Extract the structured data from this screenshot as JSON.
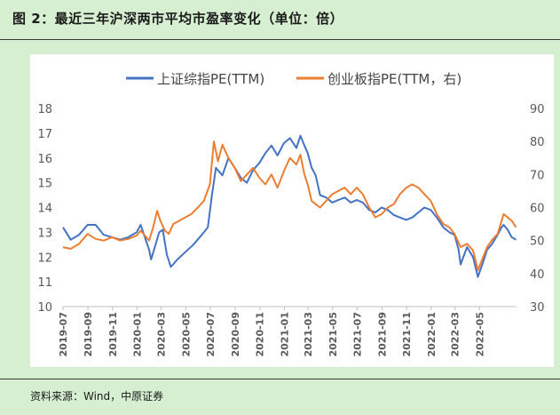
{
  "figure": {
    "title": "图 2：最近三年沪深两市平均市盈率变化（单位：倍）",
    "source": "资料来源：Wind，中原证券"
  },
  "chart_data": {
    "type": "line",
    "legend_position": "top",
    "grid": false,
    "x": [
      "2019-07",
      "2019-09",
      "2019-11",
      "2020-01",
      "2020-03",
      "2020-05",
      "2020-07",
      "2020-09",
      "2020-11",
      "2021-01",
      "2021-03",
      "2021-05",
      "2021-07",
      "2021-09",
      "2021-11",
      "2022-01",
      "2022-03",
      "2022-05"
    ],
    "yleft": {
      "lim": [
        10,
        18
      ],
      "ticks": [
        10,
        11,
        12,
        13,
        14,
        15,
        16,
        17,
        18
      ]
    },
    "yright": {
      "lim": [
        30,
        90
      ],
      "ticks": [
        30,
        40,
        50,
        60,
        70,
        80,
        90
      ]
    },
    "series": [
      {
        "name": "上证综指PE(TTM)",
        "axis": "left",
        "color": "#4472c4",
        "points": [
          [
            "2019-07-01",
            13.2
          ],
          [
            "2019-07-20",
            12.7
          ],
          [
            "2019-08-10",
            12.9
          ],
          [
            "2019-08-31",
            13.3
          ],
          [
            "2019-09-20",
            13.3
          ],
          [
            "2019-10-10",
            12.9
          ],
          [
            "2019-10-31",
            12.8
          ],
          [
            "2019-11-20",
            12.7
          ],
          [
            "2019-12-10",
            12.8
          ],
          [
            "2019-12-31",
            13.0
          ],
          [
            "2020-01-10",
            13.3
          ],
          [
            "2020-01-31",
            12.3
          ],
          [
            "2020-02-05",
            11.9
          ],
          [
            "2020-02-25",
            13.0
          ],
          [
            "2020-03-05",
            13.1
          ],
          [
            "2020-03-15",
            12.1
          ],
          [
            "2020-03-25",
            11.6
          ],
          [
            "2020-04-10",
            11.9
          ],
          [
            "2020-04-30",
            12.2
          ],
          [
            "2020-05-20",
            12.5
          ],
          [
            "2020-06-10",
            12.9
          ],
          [
            "2020-06-25",
            13.2
          ],
          [
            "2020-07-05",
            14.5
          ],
          [
            "2020-07-15",
            15.6
          ],
          [
            "2020-07-31",
            15.3
          ],
          [
            "2020-08-15",
            16.0
          ],
          [
            "2020-08-31",
            15.6
          ],
          [
            "2020-09-15",
            15.2
          ],
          [
            "2020-09-30",
            15.0
          ],
          [
            "2020-10-15",
            15.5
          ],
          [
            "2020-10-31",
            15.8
          ],
          [
            "2020-11-15",
            16.2
          ],
          [
            "2020-11-30",
            16.5
          ],
          [
            "2020-12-15",
            16.1
          ],
          [
            "2020-12-31",
            16.6
          ],
          [
            "2021-01-15",
            16.8
          ],
          [
            "2021-01-31",
            16.4
          ],
          [
            "2021-02-10",
            16.9
          ],
          [
            "2021-02-20",
            16.5
          ],
          [
            "2021-02-28",
            16.2
          ],
          [
            "2021-03-10",
            15.6
          ],
          [
            "2021-03-20",
            15.3
          ],
          [
            "2021-03-31",
            14.5
          ],
          [
            "2021-04-15",
            14.4
          ],
          [
            "2021-04-30",
            14.2
          ],
          [
            "2021-05-15",
            14.3
          ],
          [
            "2021-05-31",
            14.4
          ],
          [
            "2021-06-15",
            14.2
          ],
          [
            "2021-06-30",
            14.3
          ],
          [
            "2021-07-15",
            14.2
          ],
          [
            "2021-07-31",
            13.9
          ],
          [
            "2021-08-15",
            13.8
          ],
          [
            "2021-08-31",
            14.0
          ],
          [
            "2021-09-15",
            13.9
          ],
          [
            "2021-09-30",
            13.7
          ],
          [
            "2021-10-15",
            13.6
          ],
          [
            "2021-10-31",
            13.5
          ],
          [
            "2021-11-15",
            13.6
          ],
          [
            "2021-11-30",
            13.8
          ],
          [
            "2021-12-15",
            14.0
          ],
          [
            "2021-12-31",
            13.9
          ],
          [
            "2022-01-15",
            13.6
          ],
          [
            "2022-01-31",
            13.2
          ],
          [
            "2022-02-15",
            13.0
          ],
          [
            "2022-02-28",
            12.9
          ],
          [
            "2022-03-10",
            12.3
          ],
          [
            "2022-03-15",
            11.7
          ],
          [
            "2022-03-31",
            12.4
          ],
          [
            "2022-04-15",
            12.0
          ],
          [
            "2022-04-27",
            11.2
          ],
          [
            "2022-05-10",
            11.8
          ],
          [
            "2022-05-20",
            12.3
          ],
          [
            "2022-05-31",
            12.5
          ],
          [
            "2022-06-15",
            12.9
          ],
          [
            "2022-06-25",
            13.2
          ],
          [
            "2022-06-30",
            13.3
          ],
          [
            "2022-07-10",
            13.1
          ],
          [
            "2022-07-20",
            12.8
          ],
          [
            "2022-07-31",
            12.7
          ]
        ]
      },
      {
        "name": "创业板指PE(TTM，右)",
        "axis": "right",
        "color": "#ed7d31",
        "points": [
          [
            "2019-07-01",
            48.0
          ],
          [
            "2019-07-20",
            47.5
          ],
          [
            "2019-08-10",
            49.0
          ],
          [
            "2019-08-31",
            52.0
          ],
          [
            "2019-09-20",
            50.5
          ],
          [
            "2019-10-10",
            50.0
          ],
          [
            "2019-10-31",
            51.0
          ],
          [
            "2019-11-20",
            50.0
          ],
          [
            "2019-12-10",
            50.5
          ],
          [
            "2019-12-31",
            51.5
          ],
          [
            "2020-01-10",
            53.0
          ],
          [
            "2020-01-31",
            50.0
          ],
          [
            "2020-02-10",
            54.0
          ],
          [
            "2020-02-20",
            59.0
          ],
          [
            "2020-02-28",
            56.0
          ],
          [
            "2020-03-10",
            53.0
          ],
          [
            "2020-03-20",
            52.0
          ],
          [
            "2020-03-31",
            55.0
          ],
          [
            "2020-04-15",
            56.0
          ],
          [
            "2020-04-30",
            57.0
          ],
          [
            "2020-05-15",
            58.0
          ],
          [
            "2020-05-31",
            60.0
          ],
          [
            "2020-06-15",
            62.0
          ],
          [
            "2020-06-30",
            67.0
          ],
          [
            "2020-07-10",
            80.0
          ],
          [
            "2020-07-20",
            74.0
          ],
          [
            "2020-07-31",
            79.0
          ],
          [
            "2020-08-15",
            75.0
          ],
          [
            "2020-08-31",
            72.0
          ],
          [
            "2020-09-15",
            68.0
          ],
          [
            "2020-09-30",
            70.0
          ],
          [
            "2020-10-15",
            72.0
          ],
          [
            "2020-10-31",
            69.0
          ],
          [
            "2020-11-15",
            67.0
          ],
          [
            "2020-11-30",
            70.0
          ],
          [
            "2020-12-15",
            66.0
          ],
          [
            "2020-12-31",
            71.0
          ],
          [
            "2021-01-15",
            75.0
          ],
          [
            "2021-01-31",
            73.0
          ],
          [
            "2021-02-10",
            76.0
          ],
          [
            "2021-02-20",
            70.0
          ],
          [
            "2021-02-28",
            67.0
          ],
          [
            "2021-03-10",
            62.0
          ],
          [
            "2021-03-20",
            61.0
          ],
          [
            "2021-03-31",
            60.0
          ],
          [
            "2021-04-15",
            62.0
          ],
          [
            "2021-04-30",
            64.0
          ],
          [
            "2021-05-15",
            65.0
          ],
          [
            "2021-05-31",
            66.0
          ],
          [
            "2021-06-15",
            64.0
          ],
          [
            "2021-06-30",
            66.0
          ],
          [
            "2021-07-15",
            64.0
          ],
          [
            "2021-07-31",
            60.0
          ],
          [
            "2021-08-15",
            57.0
          ],
          [
            "2021-08-31",
            58.0
          ],
          [
            "2021-09-15",
            60.0
          ],
          [
            "2021-09-30",
            61.0
          ],
          [
            "2021-10-15",
            64.0
          ],
          [
            "2021-10-31",
            66.0
          ],
          [
            "2021-11-15",
            67.0
          ],
          [
            "2021-11-30",
            66.0
          ],
          [
            "2021-12-15",
            64.0
          ],
          [
            "2021-12-31",
            62.0
          ],
          [
            "2022-01-15",
            58.0
          ],
          [
            "2022-01-31",
            55.0
          ],
          [
            "2022-02-15",
            54.0
          ],
          [
            "2022-02-28",
            52.0
          ],
          [
            "2022-03-15",
            48.0
          ],
          [
            "2022-03-31",
            49.0
          ],
          [
            "2022-04-15",
            47.0
          ],
          [
            "2022-04-27",
            41.0
          ],
          [
            "2022-05-10",
            45.0
          ],
          [
            "2022-05-20",
            48.0
          ],
          [
            "2022-05-31",
            50.0
          ],
          [
            "2022-06-15",
            52.0
          ],
          [
            "2022-06-25",
            56.0
          ],
          [
            "2022-06-30",
            58.0
          ],
          [
            "2022-07-10",
            57.0
          ],
          [
            "2022-07-20",
            56.0
          ],
          [
            "2022-07-31",
            54.0
          ]
        ]
      }
    ]
  }
}
